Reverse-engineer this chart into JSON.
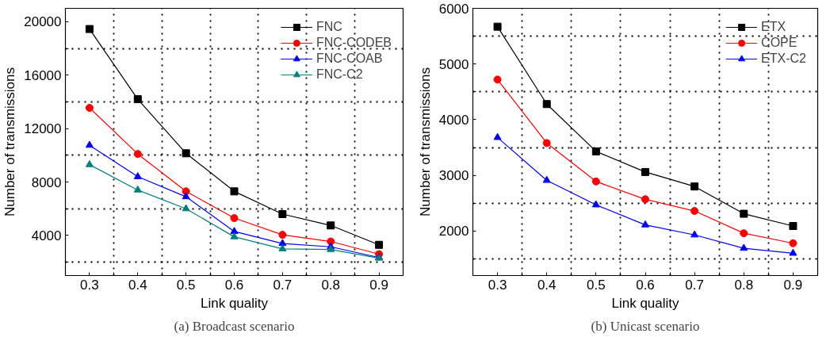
{
  "chart_data": [
    {
      "type": "line",
      "xlabel": "Link quality",
      "ylabel": "Number of transmissions",
      "annotations": [
        "(a) Broadcast scenario"
      ],
      "x": [
        0.3,
        0.4,
        0.5,
        0.6,
        0.7,
        0.8,
        0.9
      ],
      "series": [
        {
          "name": "FNC",
          "color": "#000000",
          "marker": "square",
          "values": [
            19450,
            14200,
            10150,
            7300,
            5600,
            4750,
            3300
          ]
        },
        {
          "name": "FNC-CODEB",
          "color": "#ff0000",
          "marker": "circle",
          "values": [
            13550,
            10100,
            7300,
            5300,
            4050,
            3550,
            2600
          ]
        },
        {
          "name": "FNC-COAB",
          "color": "#0000ff",
          "marker": "triangle",
          "values": [
            10750,
            8400,
            6900,
            4300,
            3400,
            3150,
            2350
          ]
        },
        {
          "name": "FNC-C2",
          "color": "#008080",
          "marker": "triangle",
          "values": [
            9300,
            7400,
            6000,
            3900,
            3000,
            2950,
            2300
          ]
        }
      ],
      "xlim": [
        0.25,
        0.95
      ],
      "xticks": [
        0.3,
        {
          "value": 0.35,
          "label": null
        },
        0.4,
        {
          "value": 0.45,
          "label": null
        },
        0.5,
        {
          "value": 0.55,
          "label": null
        },
        0.6,
        {
          "value": 0.65,
          "label": null
        },
        0.7,
        {
          "value": 0.75,
          "label": null
        },
        0.8,
        {
          "value": 0.85,
          "label": null
        },
        0.9
      ],
      "ylim": [
        1000,
        21000
      ],
      "yticks": [
        {
          "value": 2000,
          "label": null
        },
        4000,
        {
          "value": 6000,
          "label": null
        },
        8000,
        {
          "value": 10000,
          "label": null
        },
        12000,
        {
          "value": 14000,
          "label": null
        },
        16000,
        {
          "value": 18000,
          "label": null
        },
        20000
      ],
      "grid": true,
      "legend": "top right",
      "line_style": "solid"
    },
    {
      "type": "line",
      "xlabel": "Link quality",
      "ylabel": "Number of transmissions",
      "annotations": [
        "(b) Unicast scenario"
      ],
      "x": [
        0.3,
        0.4,
        0.5,
        0.6,
        0.7,
        0.8,
        0.9
      ],
      "series": [
        {
          "name": "ETX",
          "color": "#000000",
          "marker": "square",
          "values": [
            5670,
            4280,
            3430,
            3060,
            2800,
            2310,
            2090
          ]
        },
        {
          "name": "COPE",
          "color": "#ff0000",
          "marker": "circle",
          "values": [
            4720,
            3580,
            2890,
            2570,
            2360,
            1960,
            1780
          ]
        },
        {
          "name": "ETX-C2",
          "color": "#0000ff",
          "marker": "triangle",
          "values": [
            3680,
            2910,
            2470,
            2110,
            1930,
            1690,
            1600
          ]
        }
      ],
      "xlim": [
        0.25,
        0.95
      ],
      "xticks": [
        0.3,
        {
          "value": 0.35,
          "label": null
        },
        0.4,
        {
          "value": 0.45,
          "label": null
        },
        0.5,
        {
          "value": 0.55,
          "label": null
        },
        0.6,
        {
          "value": 0.65,
          "label": null
        },
        0.7,
        {
          "value": 0.75,
          "label": null
        },
        0.8,
        {
          "value": 0.85,
          "label": null
        },
        0.9
      ],
      "ylim": [
        1200,
        6000
      ],
      "yticks": [
        {
          "value": 1500,
          "label": null
        },
        2000,
        {
          "value": 2500,
          "label": null
        },
        3000,
        {
          "value": 3500,
          "label": null
        },
        4000,
        {
          "value": 4500,
          "label": null
        },
        5000,
        {
          "value": 5500,
          "label": null
        },
        6000
      ],
      "grid": true,
      "legend": "top right",
      "line_style": "solid"
    }
  ]
}
